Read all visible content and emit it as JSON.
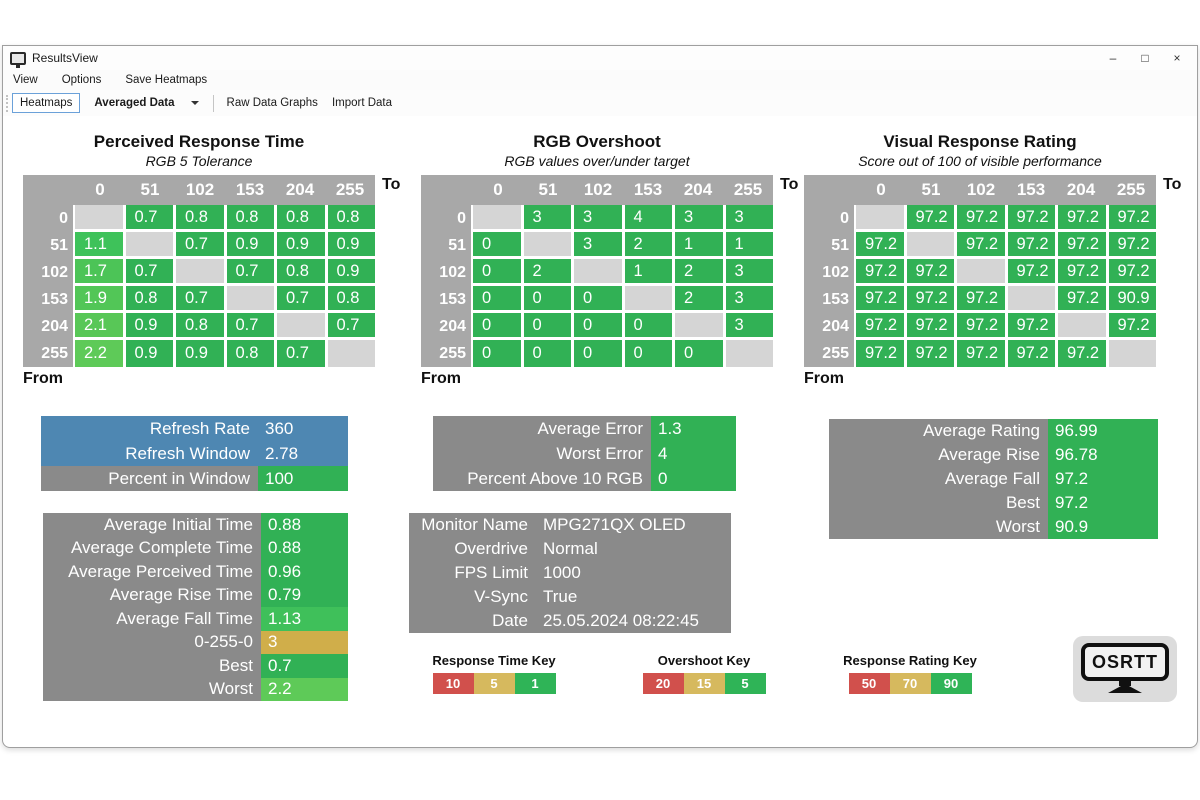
{
  "window": {
    "title": "ResultsView",
    "controls": {
      "minimize": "–",
      "maximize": "□",
      "close": "×"
    }
  },
  "menu": {
    "items": [
      "View",
      "Options",
      "Save Heatmaps"
    ]
  },
  "toolbar": {
    "heatmaps_button": "Heatmaps",
    "mode_dropdown_value": "Averaged Data",
    "raw_data_button": "Raw Data Graphs",
    "import_button": "Import Data"
  },
  "palette": {
    "cell_green": "#31b155",
    "diagonal_gray": "#d5d5d5",
    "header_gray": "#a8a8a8",
    "box_gray": "#8a8a8a",
    "blue": "#4e87b2",
    "gold": "#d0ae4a",
    "key_red": "#d1504c",
    "key_gold": "#d6b95e",
    "key_green": "#2fb457"
  },
  "heatmaps": [
    {
      "title": "Perceived Response Time",
      "subtitle": "RGB 5 Tolerance",
      "to_label": "To",
      "from_label": "From",
      "cols": [
        "0",
        "51",
        "102",
        "153",
        "204",
        "255"
      ],
      "rows": [
        "0",
        "51",
        "102",
        "153",
        "204",
        "255"
      ],
      "values": [
        [
          "",
          "0.7",
          "0.8",
          "0.8",
          "0.8",
          "0.8"
        ],
        [
          "1.1",
          "",
          "0.7",
          "0.9",
          "0.9",
          "0.9"
        ],
        [
          "1.7",
          "0.7",
          "",
          "0.7",
          "0.8",
          "0.9"
        ],
        [
          "1.9",
          "0.8",
          "0.7",
          "",
          "0.7",
          "0.8"
        ],
        [
          "2.1",
          "0.9",
          "0.8",
          "0.7",
          "",
          "0.7"
        ],
        [
          "2.2",
          "0.9",
          "0.9",
          "0.8",
          "0.7",
          ""
        ]
      ],
      "cell_colors": [
        [
          null,
          null,
          null,
          null,
          null,
          null
        ],
        [
          "#3ec25a",
          null,
          null,
          null,
          null,
          null
        ],
        [
          "#4cc457",
          null,
          null,
          null,
          null,
          null
        ],
        [
          "#52c657",
          null,
          null,
          null,
          null,
          null
        ],
        [
          "#58c757",
          null,
          null,
          null,
          null,
          null
        ],
        [
          "#5eca58",
          null,
          null,
          null,
          null,
          null
        ]
      ]
    },
    {
      "title": "RGB Overshoot",
      "subtitle": "RGB values over/under target",
      "to_label": "To",
      "from_label": "From",
      "cols": [
        "0",
        "51",
        "102",
        "153",
        "204",
        "255"
      ],
      "rows": [
        "0",
        "51",
        "102",
        "153",
        "204",
        "255"
      ],
      "values": [
        [
          "",
          "3",
          "3",
          "4",
          "3",
          "3"
        ],
        [
          "0",
          "",
          "3",
          "2",
          "1",
          "1"
        ],
        [
          "0",
          "2",
          "",
          "1",
          "2",
          "3"
        ],
        [
          "0",
          "0",
          "0",
          "",
          "2",
          "3"
        ],
        [
          "0",
          "0",
          "0",
          "0",
          "",
          "3"
        ],
        [
          "0",
          "0",
          "0",
          "0",
          "0",
          ""
        ]
      ],
      "cell_colors": null
    },
    {
      "title": "Visual Response Rating",
      "subtitle": "Score out of 100 of visible performance",
      "to_label": "To",
      "from_label": "From",
      "cols": [
        "0",
        "51",
        "102",
        "153",
        "204",
        "255"
      ],
      "rows": [
        "0",
        "51",
        "102",
        "153",
        "204",
        "255"
      ],
      "values": [
        [
          "",
          "97.2",
          "97.2",
          "97.2",
          "97.2",
          "97.2"
        ],
        [
          "97.2",
          "",
          "97.2",
          "97.2",
          "97.2",
          "97.2"
        ],
        [
          "97.2",
          "97.2",
          "",
          "97.2",
          "97.2",
          "97.2"
        ],
        [
          "97.2",
          "97.2",
          "97.2",
          "",
          "97.2",
          "90.9"
        ],
        [
          "97.2",
          "97.2",
          "97.2",
          "97.2",
          "",
          "97.2"
        ],
        [
          "97.2",
          "97.2",
          "97.2",
          "97.2",
          "97.2",
          ""
        ]
      ],
      "cell_colors": null
    }
  ],
  "summary_boxes": [
    {
      "name": "refresh-stats",
      "rows": [
        {
          "label": "Refresh Rate",
          "value": "360",
          "label_bg": "#4e87b2",
          "value_bg": "#4e87b2"
        },
        {
          "label": "Refresh Window",
          "value": "2.78",
          "label_bg": "#4e87b2",
          "value_bg": "#4e87b2"
        },
        {
          "label": "Percent in Window",
          "value": "100",
          "label_bg": "#8a8a8a",
          "value_bg": "#31b155"
        }
      ]
    },
    {
      "name": "overshoot-stats",
      "rows": [
        {
          "label": "Average Error",
          "value": "1.3",
          "label_bg": "#8a8a8a",
          "value_bg": "#31b155"
        },
        {
          "label": "Worst Error",
          "value": "4",
          "label_bg": "#8a8a8a",
          "value_bg": "#31b155"
        },
        {
          "label": "Percent Above 10 RGB",
          "value": "0",
          "label_bg": "#8a8a8a",
          "value_bg": "#31b155"
        }
      ]
    },
    {
      "name": "rating-stats",
      "rows": [
        {
          "label": "Average Rating",
          "value": "96.99",
          "label_bg": "#8a8a8a",
          "value_bg": "#31b155"
        },
        {
          "label": "Average Rise",
          "value": "96.78",
          "label_bg": "#8a8a8a",
          "value_bg": "#31b155"
        },
        {
          "label": "Average Fall",
          "value": "97.2",
          "label_bg": "#8a8a8a",
          "value_bg": "#31b155"
        },
        {
          "label": "Best",
          "value": "97.2",
          "label_bg": "#8a8a8a",
          "value_bg": "#31b155"
        },
        {
          "label": "Worst",
          "value": "90.9",
          "label_bg": "#8a8a8a",
          "value_bg": "#31b155"
        }
      ]
    },
    {
      "name": "time-stats",
      "rows": [
        {
          "label": "Average Initial Time",
          "value": "0.88",
          "label_bg": "#8a8a8a",
          "value_bg": "#31b155"
        },
        {
          "label": "Average Complete Time",
          "value": "0.88",
          "label_bg": "#8a8a8a",
          "value_bg": "#31b155"
        },
        {
          "label": "Average Perceived Time",
          "value": "0.96",
          "label_bg": "#8a8a8a",
          "value_bg": "#31b155"
        },
        {
          "label": "Average Rise Time",
          "value": "0.79",
          "label_bg": "#8a8a8a",
          "value_bg": "#31b155"
        },
        {
          "label": "Average Fall Time",
          "value": "1.13",
          "label_bg": "#8a8a8a",
          "value_bg": "#3fc05a"
        },
        {
          "label": "0-255-0",
          "value": "3",
          "label_bg": "#8a8a8a",
          "value_bg": "#d0ae4a"
        },
        {
          "label": "Best",
          "value": "0.7",
          "label_bg": "#8a8a8a",
          "value_bg": "#31b155"
        },
        {
          "label": "Worst",
          "value": "2.2",
          "label_bg": "#8a8a8a",
          "value_bg": "#5eca58"
        }
      ]
    },
    {
      "name": "monitor-info",
      "rows": [
        {
          "label": "Monitor Name",
          "value": "MPG271QX OLED",
          "label_bg": null,
          "value_bg": null
        },
        {
          "label": "Overdrive",
          "value": "Normal",
          "label_bg": null,
          "value_bg": null
        },
        {
          "label": "FPS Limit",
          "value": "1000",
          "label_bg": null,
          "value_bg": null
        },
        {
          "label": "V-Sync",
          "value": "True",
          "label_bg": null,
          "value_bg": null
        },
        {
          "label": "Date",
          "value": "25.05.2024 08:22:45",
          "label_bg": null,
          "value_bg": null
        }
      ]
    }
  ],
  "keys": [
    {
      "title": "Response Time Key",
      "stops": [
        {
          "value": "10",
          "color": "#d1504c"
        },
        {
          "value": "5",
          "color": "#d6b95e"
        },
        {
          "value": "1",
          "color": "#2fb457"
        }
      ]
    },
    {
      "title": "Overshoot Key",
      "stops": [
        {
          "value": "20",
          "color": "#d1504c"
        },
        {
          "value": "15",
          "color": "#d6b95e"
        },
        {
          "value": "5",
          "color": "#2fb457"
        }
      ]
    },
    {
      "title": "Response Rating Key",
      "stops": [
        {
          "value": "50",
          "color": "#d1504c"
        },
        {
          "value": "70",
          "color": "#d6b95e"
        },
        {
          "value": "90",
          "color": "#2fb457"
        }
      ]
    }
  ],
  "logo": {
    "text": "OSRTT"
  }
}
